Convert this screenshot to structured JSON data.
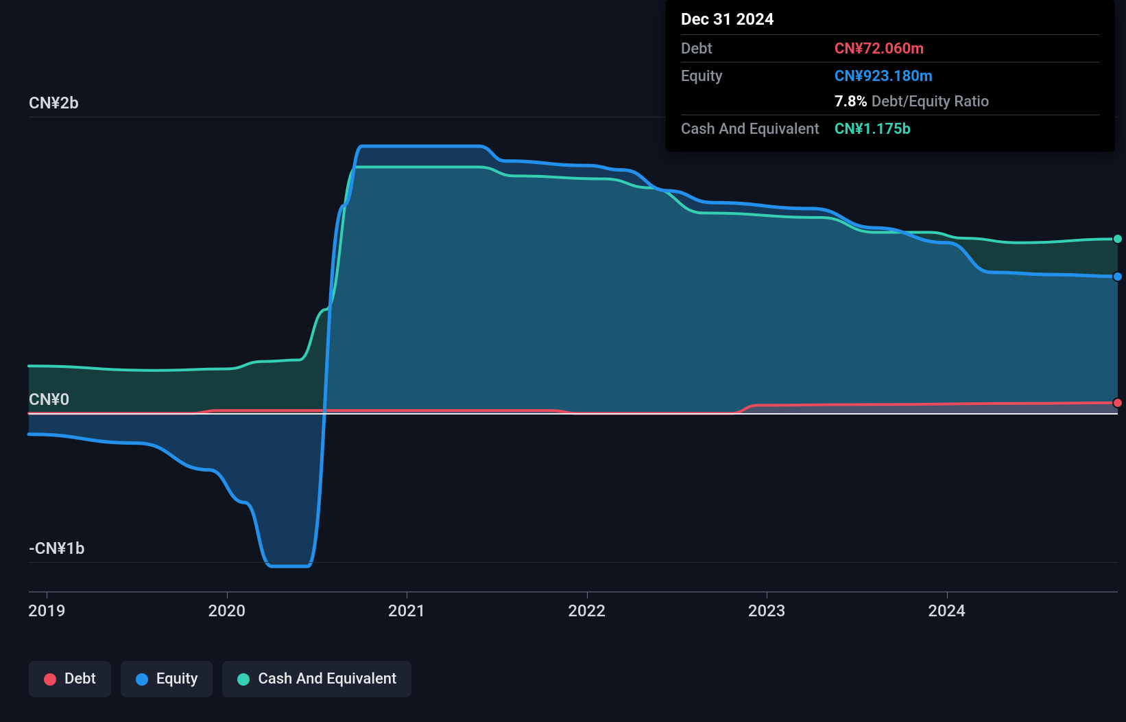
{
  "chart": {
    "type": "area",
    "background_color": "#0e131d",
    "grid_color": "#2a2f3a",
    "axis_line_color": "#6a7080",
    "baseline_color": "#e8eaed",
    "text_color": "#d5d8dc",
    "font_size_axis": 24,
    "x": {
      "min": 2018.9,
      "max": 2024.95,
      "ticks": [
        2019,
        2020,
        2021,
        2022,
        2023,
        2024
      ],
      "labels": [
        "2019",
        "2020",
        "2021",
        "2022",
        "2023",
        "2024"
      ]
    },
    "y": {
      "min": -1200000000,
      "max": 2600000000,
      "gridlines": [
        -1000000000,
        0,
        2000000000
      ],
      "labels": [
        "-CN¥1b",
        "CN¥0",
        "CN¥2b"
      ],
      "baseline_value": 0
    },
    "series": [
      {
        "id": "debt",
        "label": "Debt",
        "color": "#eb4b5c",
        "fill_color": "rgba(235,75,92,0.22)",
        "line_width": 4,
        "points": [
          {
            "x": 2018.9,
            "y": 0
          },
          {
            "x": 2019.8,
            "y": 0
          },
          {
            "x": 2019.95,
            "y": 20000000
          },
          {
            "x": 2021.8,
            "y": 20000000
          },
          {
            "x": 2021.95,
            "y": 0
          },
          {
            "x": 2022.8,
            "y": 0
          },
          {
            "x": 2022.95,
            "y": 55000000
          },
          {
            "x": 2023.5,
            "y": 60000000
          },
          {
            "x": 2024.5,
            "y": 68000000
          },
          {
            "x": 2024.95,
            "y": 72060000
          }
        ]
      },
      {
        "id": "equity",
        "label": "Equity",
        "color": "#2391eb",
        "fill_color": "rgba(35,145,235,0.30)",
        "line_width": 5,
        "points": [
          {
            "x": 2018.9,
            "y": -140000000
          },
          {
            "x": 2019.5,
            "y": -200000000
          },
          {
            "x": 2019.9,
            "y": -380000000
          },
          {
            "x": 2020.1,
            "y": -600000000
          },
          {
            "x": 2020.25,
            "y": -1030000000
          },
          {
            "x": 2020.45,
            "y": -1030000000
          },
          {
            "x": 2020.65,
            "y": 1400000000
          },
          {
            "x": 2020.75,
            "y": 1800000000
          },
          {
            "x": 2021.4,
            "y": 1800000000
          },
          {
            "x": 2021.55,
            "y": 1700000000
          },
          {
            "x": 2022.0,
            "y": 1670000000
          },
          {
            "x": 2022.2,
            "y": 1640000000
          },
          {
            "x": 2022.45,
            "y": 1500000000
          },
          {
            "x": 2022.7,
            "y": 1420000000
          },
          {
            "x": 2023.25,
            "y": 1380000000
          },
          {
            "x": 2023.6,
            "y": 1250000000
          },
          {
            "x": 2024.0,
            "y": 1150000000
          },
          {
            "x": 2024.25,
            "y": 950000000
          },
          {
            "x": 2024.6,
            "y": 935000000
          },
          {
            "x": 2024.95,
            "y": 923180000
          }
        ]
      },
      {
        "id": "cash",
        "label": "Cash And Equivalent",
        "color": "#35d0b4",
        "fill_color": "rgba(53,208,180,0.22)",
        "line_width": 4,
        "points": [
          {
            "x": 2018.9,
            "y": 320000000
          },
          {
            "x": 2019.6,
            "y": 290000000
          },
          {
            "x": 2020.0,
            "y": 300000000
          },
          {
            "x": 2020.2,
            "y": 350000000
          },
          {
            "x": 2020.4,
            "y": 360000000
          },
          {
            "x": 2020.55,
            "y": 700000000
          },
          {
            "x": 2020.72,
            "y": 1660000000
          },
          {
            "x": 2021.4,
            "y": 1660000000
          },
          {
            "x": 2021.6,
            "y": 1600000000
          },
          {
            "x": 2022.1,
            "y": 1580000000
          },
          {
            "x": 2022.35,
            "y": 1520000000
          },
          {
            "x": 2022.65,
            "y": 1350000000
          },
          {
            "x": 2023.3,
            "y": 1320000000
          },
          {
            "x": 2023.6,
            "y": 1220000000
          },
          {
            "x": 2023.9,
            "y": 1220000000
          },
          {
            "x": 2024.1,
            "y": 1180000000
          },
          {
            "x": 2024.4,
            "y": 1150000000
          },
          {
            "x": 2024.95,
            "y": 1175000000
          }
        ]
      }
    ]
  },
  "tooltip": {
    "date": "Dec 31 2024",
    "rows": [
      {
        "id": "debt",
        "label": "Debt",
        "value": "CN¥72.060m",
        "value_color": "#eb4b5c"
      },
      {
        "id": "equity",
        "label": "Equity",
        "value": "CN¥923.180m",
        "value_color": "#2391eb"
      }
    ],
    "ratio": {
      "pct": "7.8%",
      "label": "Debt/Equity Ratio"
    },
    "cash_row": {
      "id": "cash",
      "label": "Cash And Equivalent",
      "value": "CN¥1.175b",
      "value_color": "#35d0b4"
    }
  },
  "legend": {
    "items": [
      {
        "id": "debt",
        "label": "Debt",
        "color": "#eb4b5c"
      },
      {
        "id": "equity",
        "label": "Equity",
        "color": "#2391eb"
      },
      {
        "id": "cash",
        "label": "Cash And Equivalent",
        "color": "#35d0b4"
      }
    ],
    "item_bg": "#1c2230"
  }
}
